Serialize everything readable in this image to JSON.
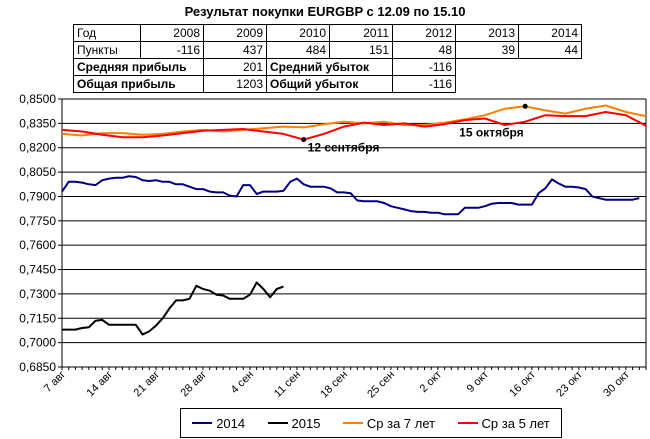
{
  "title": "Результат покупки EURGBP с 12.09 по 15.10",
  "table": {
    "years_row": [
      "Год",
      "2008",
      "2009",
      "2010",
      "2011",
      "2012",
      "2013",
      "2014"
    ],
    "points_row": [
      "Пункты",
      "-116",
      "437",
      "484",
      "151",
      "48",
      "39",
      "44"
    ],
    "avg_profit_label": "Средняя прибыль",
    "avg_profit_value": "201",
    "avg_loss_label": "Средний убыток",
    "avg_loss_value": "-116",
    "total_profit_label": "Общая прибыль",
    "total_profit_value": "1203",
    "total_loss_label": "Общий убыток",
    "total_loss_value": "-116"
  },
  "chart_data": {
    "type": "line",
    "title": "Результат покупки EURGBP с 12.09 по 15.10",
    "ylim": [
      0.685,
      0.85
    ],
    "y_ticks": [
      "0,6850",
      "0,7000",
      "0,7150",
      "0,7300",
      "0,7450",
      "0,7600",
      "0,7750",
      "0,7900",
      "0,8050",
      "0,8200",
      "0,8350",
      "0,8500"
    ],
    "x_ticks": [
      "7 авг",
      "14 авг",
      "21 авг",
      "28 авг",
      "4 сен",
      "11 сен",
      "18 сен",
      "25 сен",
      "2 окт",
      "9 окт",
      "16 окт",
      "23 окт",
      "30 окт"
    ],
    "grid": true,
    "legend_position": "bottom",
    "x_start": "7 авг",
    "x_end": "1 ноя",
    "annotations": [
      {
        "text": "12 сентября",
        "day": 36,
        "series": "Ср за 5 лет"
      },
      {
        "text": "15 октября",
        "day": 69,
        "series": "Ср за 7 лет"
      }
    ],
    "series": [
      {
        "name": "2014",
        "color": "#000080",
        "x": [
          0,
          1,
          2,
          3,
          4,
          5,
          6,
          7,
          8,
          9,
          10,
          11,
          12,
          13,
          14,
          15,
          16,
          17,
          18,
          19,
          20,
          21,
          22,
          23,
          24,
          25,
          26,
          27,
          28,
          29,
          30,
          31,
          32,
          33,
          34,
          35,
          36,
          37,
          38,
          39,
          40,
          41,
          42,
          43,
          44,
          45,
          46,
          47,
          48,
          49,
          50,
          51,
          52,
          53,
          54,
          55,
          56,
          57,
          58,
          59,
          60,
          61,
          62,
          63,
          64,
          65,
          66,
          67,
          68,
          69,
          70,
          71,
          72,
          73,
          74,
          75,
          76,
          77,
          78,
          79,
          80,
          81,
          82,
          83,
          84,
          85,
          86
        ],
        "values": [
          0.793,
          0.799,
          0.799,
          0.7985,
          0.7975,
          0.797,
          0.8,
          0.801,
          0.8015,
          0.8015,
          0.8025,
          0.802,
          0.8,
          0.7995,
          0.8,
          0.799,
          0.799,
          0.7975,
          0.7975,
          0.796,
          0.7945,
          0.7945,
          0.793,
          0.7925,
          0.7925,
          0.7905,
          0.79,
          0.797,
          0.797,
          0.7915,
          0.793,
          0.793,
          0.793,
          0.7935,
          0.799,
          0.801,
          0.7975,
          0.796,
          0.796,
          0.796,
          0.795,
          0.7925,
          0.7925,
          0.792,
          0.7875,
          0.787,
          0.787,
          0.787,
          0.786,
          0.784,
          0.783,
          0.782,
          0.781,
          0.7805,
          0.7805,
          0.78,
          0.78,
          0.779,
          0.779,
          0.779,
          0.783,
          0.783,
          0.783,
          0.784,
          0.7855,
          0.786,
          0.786,
          0.786,
          0.785,
          0.785,
          0.785,
          0.792,
          0.795,
          0.8005,
          0.798,
          0.796,
          0.796,
          0.7955,
          0.7945,
          0.79,
          0.789,
          0.788,
          0.788,
          0.788,
          0.788,
          0.788,
          0.789
        ]
      },
      {
        "name": "2015",
        "color": "#000000",
        "x": [
          0,
          1,
          2,
          3,
          4,
          5,
          6,
          7,
          8,
          9,
          10,
          11,
          12,
          13,
          14,
          15,
          16,
          17,
          18,
          19,
          20,
          21,
          22,
          23,
          24,
          25,
          26,
          27,
          28,
          29,
          30,
          31,
          32,
          33
        ],
        "values": [
          0.708,
          0.708,
          0.708,
          0.709,
          0.7095,
          0.7135,
          0.714,
          0.711,
          0.711,
          0.711,
          0.711,
          0.711,
          0.705,
          0.707,
          0.7105,
          0.715,
          0.721,
          0.726,
          0.726,
          0.727,
          0.735,
          0.733,
          0.732,
          0.7295,
          0.729,
          0.727,
          0.727,
          0.727,
          0.7295,
          0.737,
          0.733,
          0.728,
          0.733,
          0.7345
        ]
      },
      {
        "name": "Ср за 7 лет",
        "color": "#FF8000",
        "x": [
          0,
          3,
          6,
          9,
          12,
          15,
          18,
          21,
          24,
          27,
          30,
          33,
          36,
          39,
          42,
          45,
          48,
          51,
          54,
          57,
          60,
          63,
          66,
          69,
          72,
          75,
          78,
          81,
          84,
          87
        ],
        "values": [
          0.8285,
          0.8275,
          0.829,
          0.829,
          0.828,
          0.8285,
          0.83,
          0.831,
          0.83,
          0.831,
          0.832,
          0.833,
          0.8325,
          0.8345,
          0.836,
          0.835,
          0.836,
          0.834,
          0.834,
          0.8355,
          0.8375,
          0.84,
          0.844,
          0.8455,
          0.843,
          0.841,
          0.844,
          0.846,
          0.842,
          0.8395
        ]
      },
      {
        "name": "Ср за 5 лет",
        "color": "#FF0000",
        "x": [
          0,
          3,
          6,
          9,
          12,
          15,
          18,
          21,
          24,
          27,
          30,
          33,
          36,
          39,
          42,
          45,
          48,
          51,
          54,
          57,
          60,
          63,
          66,
          69,
          72,
          75,
          78,
          81,
          84,
          87
        ],
        "values": [
          0.831,
          0.83,
          0.828,
          0.8265,
          0.8265,
          0.8275,
          0.829,
          0.8305,
          0.831,
          0.8315,
          0.83,
          0.8285,
          0.825,
          0.8285,
          0.833,
          0.8355,
          0.834,
          0.835,
          0.833,
          0.8345,
          0.837,
          0.838,
          0.834,
          0.836,
          0.84,
          0.8395,
          0.8395,
          0.842,
          0.84,
          0.8335
        ]
      }
    ]
  }
}
